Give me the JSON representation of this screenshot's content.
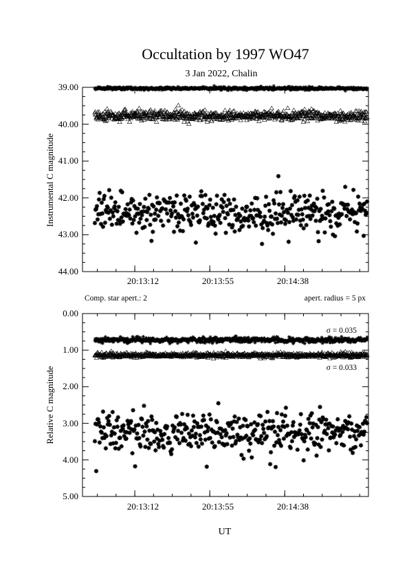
{
  "title": "Occultation by 1997 WO47",
  "subtitle": "3 Jan 2022, Chalin",
  "xlabel": "UT",
  "top_panel": {
    "ylabel": "Instrumental C magnitude",
    "yticks": [
      "39.00",
      "40.00",
      "41.00",
      "42.00",
      "43.00",
      "44.00"
    ],
    "xticks": [
      "20:13:12",
      "20:13:55",
      "20:14:38"
    ],
    "note_left": "Comp. star apert.: 2",
    "note_right": "apert. radius = 5 px"
  },
  "bottom_panel": {
    "ylabel": "Relative C magnitude",
    "yticks": [
      "0.00",
      "1.00",
      "2.00",
      "3.00",
      "4.00",
      "5.00"
    ],
    "xticks": [
      "20:13:12",
      "20:13:55",
      "20:14:38"
    ],
    "sigma_upper": "σ = 0.035",
    "sigma_lower": "σ = 0.033"
  },
  "chart_data": [
    {
      "type": "scatter",
      "panel": "top",
      "ylabel": "Instrumental C magnitude",
      "xlim": [
        "20:12:42",
        "20:15:26"
      ],
      "ylim": [
        39.0,
        44.0
      ],
      "y_inverted": true,
      "series": [
        {
          "marker": "star",
          "points": 800,
          "mean": 39.03,
          "scatter": 0.02
        },
        {
          "marker": "triangle",
          "points": 800,
          "mean": 39.77,
          "scatter": 0.07
        },
        {
          "marker": "star",
          "points": 400,
          "mean": 42.35,
          "scatter": 0.25
        }
      ],
      "grid": false
    },
    {
      "type": "scatter",
      "panel": "bottom",
      "ylabel": "Relative C magnitude",
      "xlim": [
        "20:12:42",
        "20:15:26"
      ],
      "ylim": [
        0.0,
        5.0
      ],
      "y_inverted": false,
      "series": [
        {
          "marker": "star",
          "points": 800,
          "mean": 0.72,
          "scatter": 0.035
        },
        {
          "marker": "triangle",
          "points": 800,
          "mean": 1.14,
          "scatter": 0.033
        },
        {
          "marker": "star",
          "points": 400,
          "mean": 3.22,
          "scatter": 0.25
        }
      ],
      "reference_lines": [
        {
          "y": 1.12,
          "color": "#7a2a6a"
        }
      ],
      "grid": false
    }
  ]
}
